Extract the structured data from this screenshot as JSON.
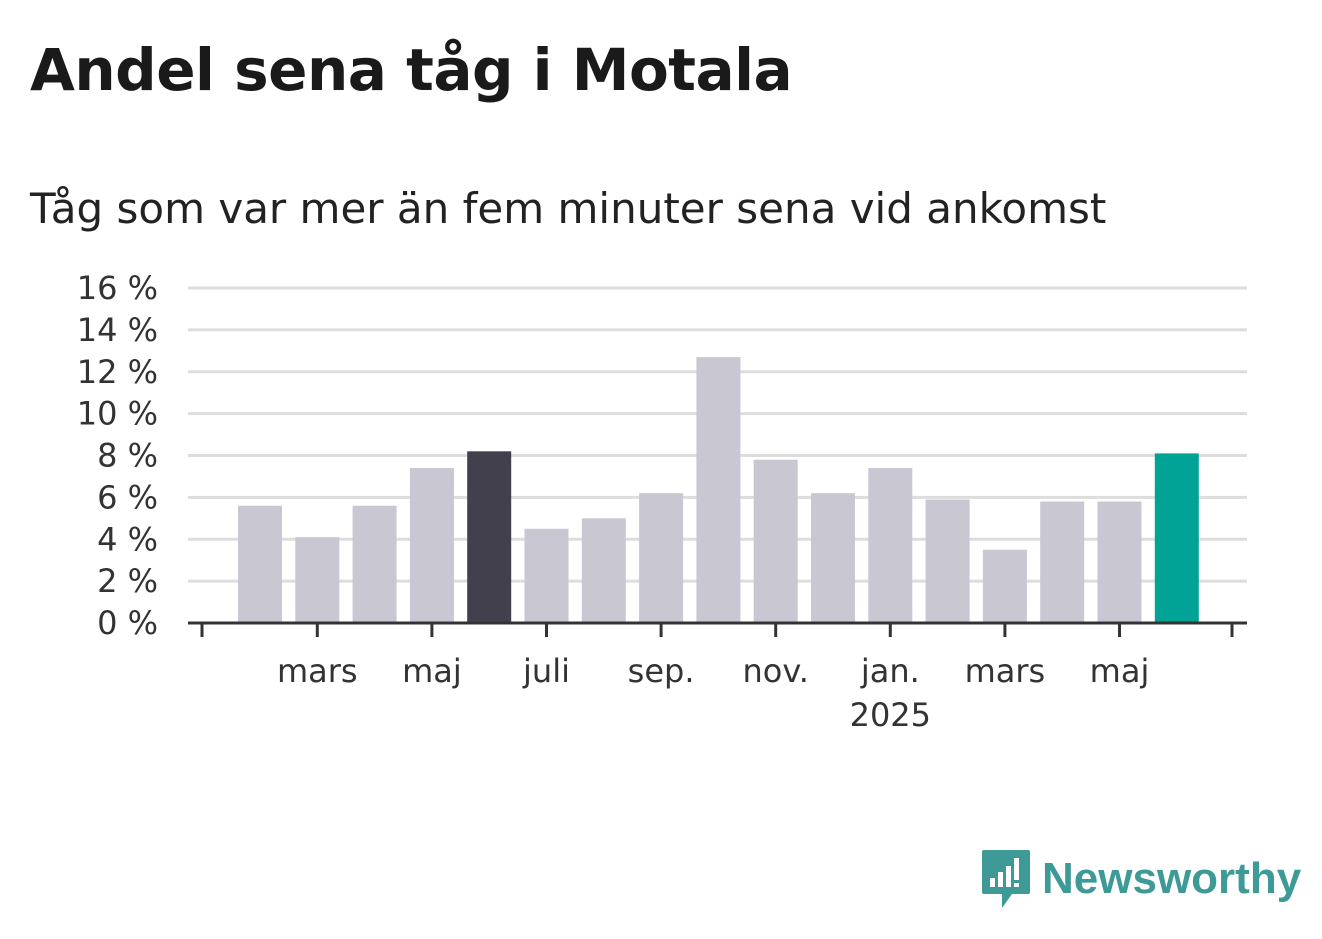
{
  "title": "Andel sena tåg i Motala",
  "subtitle": "Tåg som var mer än fem minuter sena vid ankomst",
  "logo_text": "Newsworthy",
  "colors": {
    "default": "#c8c7d2",
    "highlight_dark": "#42404c",
    "highlight_accent": "#00a396",
    "grid": "#dddddd",
    "axis": "#333333"
  },
  "chart_data": {
    "type": "bar",
    "unit": "%",
    "ylim": [
      0,
      16
    ],
    "yticks": [
      0,
      2,
      4,
      6,
      8,
      10,
      12,
      14,
      16
    ],
    "ytick_labels": [
      "0 %",
      "2 %",
      "4 %",
      "6 %",
      "8 %",
      "10 %",
      "12 %",
      "14 %",
      "16 %"
    ],
    "grid": true,
    "x": [
      "2024-02",
      "2024-03",
      "2024-04",
      "2024-05",
      "2024-06",
      "2024-07",
      "2024-08",
      "2024-09",
      "2024-10",
      "2024-11",
      "2024-12",
      "2025-01",
      "2025-02",
      "2025-03",
      "2025-04",
      "2025-05",
      "2025-06"
    ],
    "values": [
      5.6,
      4.1,
      5.6,
      7.4,
      8.2,
      4.5,
      5.0,
      6.2,
      12.7,
      7.8,
      6.2,
      7.4,
      5.9,
      3.5,
      5.8,
      5.8,
      8.1
    ],
    "highlight": {
      "2024-06": "highlight_dark",
      "2025-06": "highlight_accent"
    },
    "xtick_labels": [
      {
        "x": "2024-03",
        "label": "mars"
      },
      {
        "x": "2024-05",
        "label": "maj"
      },
      {
        "x": "2024-07",
        "label": "juli"
      },
      {
        "x": "2024-09",
        "label": "sep."
      },
      {
        "x": "2024-11",
        "label": "nov."
      },
      {
        "x": "2025-01",
        "label": "jan.",
        "sublabel": "2025"
      },
      {
        "x": "2025-03",
        "label": "mars"
      },
      {
        "x": "2025-05",
        "label": "maj"
      }
    ]
  }
}
